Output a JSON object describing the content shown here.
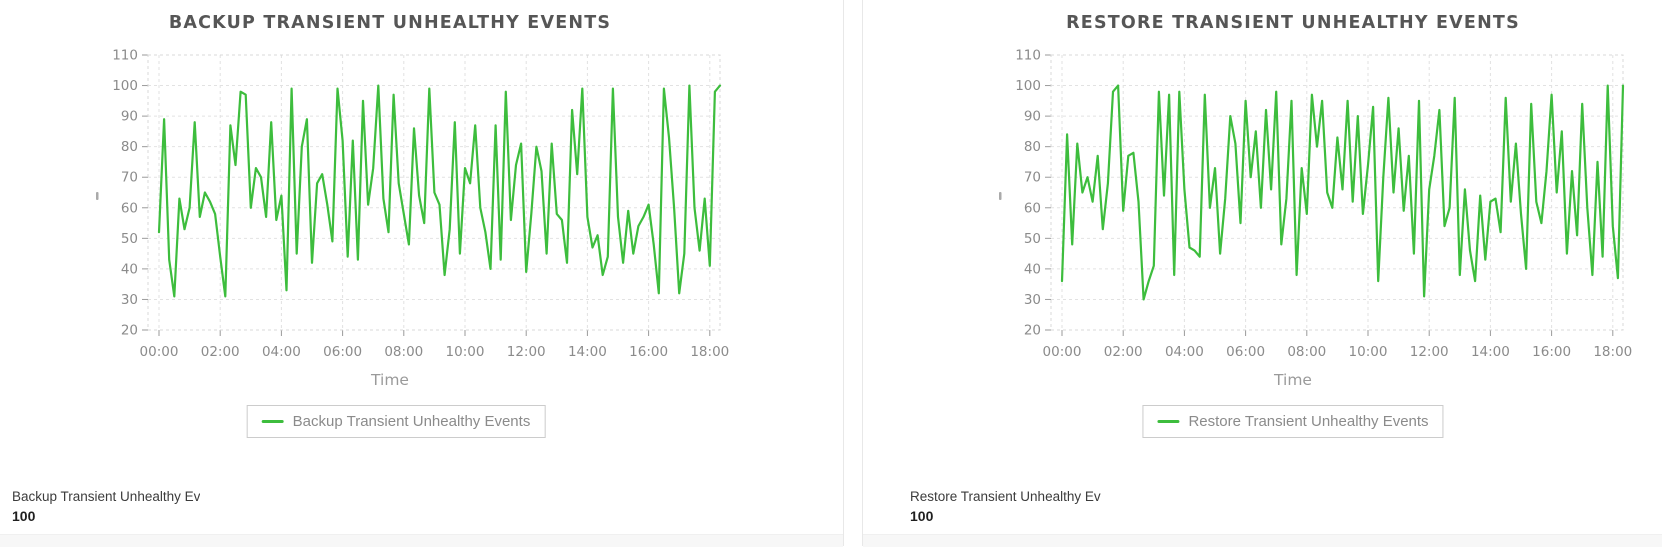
{
  "page": {
    "background": "#ffffff",
    "divider_color": "#e8e8e8",
    "footer_strip_color": "#f7f7f7"
  },
  "chart_data": [
    {
      "type": "line",
      "title": "BACKUP TRANSIENT UNHEALTHY EVENTS",
      "xlabel": "Time",
      "ylabel": "",
      "ylim": [
        20,
        110
      ],
      "y_ticks": [
        20,
        30,
        40,
        50,
        60,
        70,
        80,
        90,
        100,
        110
      ],
      "x_ticks": [
        "00:00",
        "02:00",
        "04:00",
        "06:00",
        "08:00",
        "10:00",
        "12:00",
        "14:00",
        "16:00",
        "18:00"
      ],
      "x_tick_interval_minutes": 120,
      "x_interval_minutes": 10,
      "grid": true,
      "line_color": "#3dbd3d",
      "legend": {
        "position": "bottom",
        "label": "Backup Transient Unhealthy Events"
      },
      "values": [
        52,
        89,
        43,
        31,
        63,
        53,
        60,
        88,
        57,
        65,
        62,
        58,
        44,
        31,
        87,
        74,
        98,
        97,
        60,
        73,
        70,
        57,
        88,
        56,
        64,
        33,
        99,
        45,
        80,
        89,
        42,
        68,
        71,
        61,
        49,
        99,
        82,
        44,
        82,
        43,
        95,
        61,
        73,
        100,
        63,
        52,
        97,
        68,
        58,
        48,
        86,
        64,
        55,
        99,
        65,
        61,
        38,
        53,
        88,
        45,
        73,
        68,
        87,
        60,
        52,
        40,
        87,
        43,
        98,
        56,
        74,
        81,
        39,
        58,
        80,
        72,
        45,
        81,
        58,
        56,
        42,
        92,
        71,
        99,
        57,
        47,
        51,
        38,
        44,
        99,
        57,
        42,
        59,
        45,
        54,
        57,
        61,
        48,
        32,
        99,
        83,
        60,
        32,
        45,
        100,
        60,
        46,
        63,
        41,
        98,
        100
      ]
    },
    {
      "type": "line",
      "title": "RESTORE TRANSIENT UNHEALTHY EVENTS",
      "xlabel": "Time",
      "ylabel": "",
      "ylim": [
        20,
        110
      ],
      "y_ticks": [
        20,
        30,
        40,
        50,
        60,
        70,
        80,
        90,
        100,
        110
      ],
      "x_ticks": [
        "00:00",
        "02:00",
        "04:00",
        "06:00",
        "08:00",
        "10:00",
        "12:00",
        "14:00",
        "16:00",
        "18:00"
      ],
      "x_tick_interval_minutes": 120,
      "x_interval_minutes": 10,
      "grid": true,
      "line_color": "#3dbd3d",
      "legend": {
        "position": "bottom",
        "label": "Restore Transient Unhealthy Events"
      },
      "values": [
        36,
        84,
        48,
        81,
        65,
        70,
        62,
        77,
        53,
        68,
        98,
        100,
        59,
        77,
        78,
        62,
        30,
        36,
        41,
        98,
        64,
        97,
        38,
        98,
        66,
        47,
        46,
        44,
        97,
        60,
        73,
        45,
        63,
        90,
        81,
        55,
        95,
        70,
        85,
        60,
        92,
        66,
        98,
        48,
        63,
        95,
        38,
        73,
        58,
        97,
        80,
        95,
        65,
        60,
        83,
        66,
        95,
        62,
        90,
        58,
        74,
        93,
        36,
        70,
        96,
        65,
        86,
        59,
        77,
        45,
        95,
        31,
        66,
        77,
        92,
        54,
        60,
        96,
        38,
        66,
        46,
        36,
        64,
        43,
        62,
        63,
        52,
        96,
        62,
        81,
        58,
        40,
        94,
        62,
        55,
        72,
        97,
        65,
        85,
        45,
        72,
        51,
        94,
        60,
        38,
        75,
        44,
        100,
        54,
        37,
        100
      ]
    }
  ],
  "panels": [
    {
      "id": "backup",
      "summary": {
        "label": "Backup Transient Unhealthy Ev",
        "value": "100"
      }
    },
    {
      "id": "restore",
      "summary": {
        "label": "Restore Transient Unhealthy Ev",
        "value": "100"
      }
    }
  ]
}
